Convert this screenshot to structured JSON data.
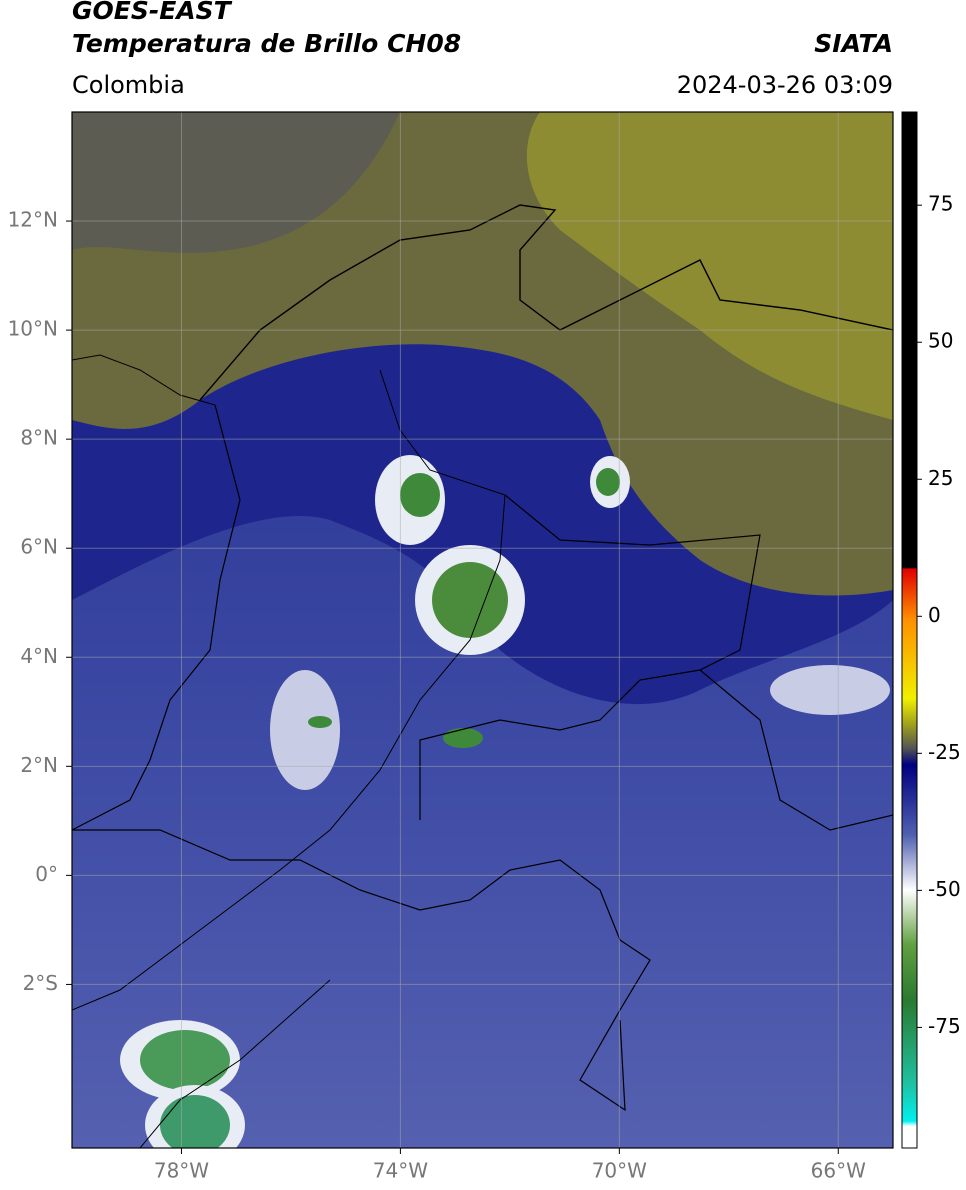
{
  "header": {
    "title": "GOES-EAST",
    "subtitle": "Temperatura de Brillo CH08",
    "source": "SIATA",
    "region": "Colombia",
    "datetime": "2024-03-26 03:09"
  },
  "map": {
    "xlim": [
      -80,
      -65
    ],
    "ylim": [
      -5,
      14
    ],
    "grid": true,
    "xticks": [
      {
        "value": -78,
        "label": "78°W"
      },
      {
        "value": -74,
        "label": "74°W"
      },
      {
        "value": -70,
        "label": "70°W"
      },
      {
        "value": -66,
        "label": "66°W"
      }
    ],
    "yticks": [
      {
        "value": 12,
        "label": "12°N"
      },
      {
        "value": 10,
        "label": "10°N"
      },
      {
        "value": 8,
        "label": "8°N"
      },
      {
        "value": 6,
        "label": "6°N"
      },
      {
        "value": 4,
        "label": "4°N"
      },
      {
        "value": 2,
        "label": "2°N"
      },
      {
        "value": 0,
        "label": "0°"
      },
      {
        "value": -2,
        "label": "2°S"
      }
    ]
  },
  "colorbar": {
    "lim": [
      -97,
      92
    ],
    "ticks": [
      75,
      50,
      25,
      0,
      -25,
      -50,
      -75
    ]
  }
}
